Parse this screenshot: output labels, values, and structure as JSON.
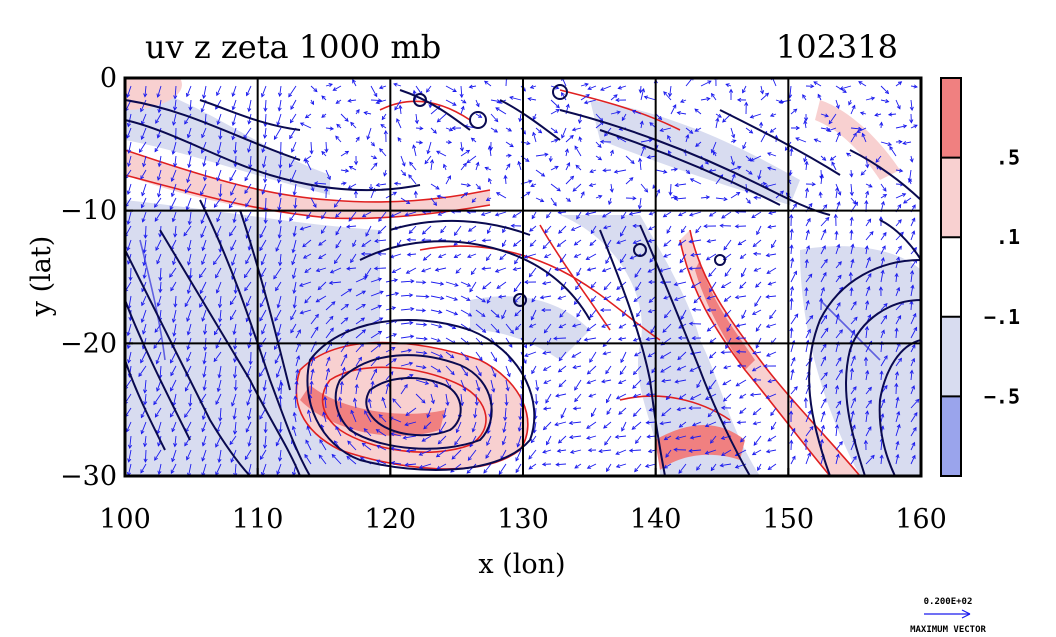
{
  "chart_data": {
    "type": "contour",
    "title": "uv z zeta 1000 mb",
    "subtitle": "102318",
    "xlabel": "x (lon)",
    "ylabel": "y (lat)",
    "xlim": [
      100,
      160
    ],
    "ylim": [
      -30,
      0
    ],
    "x_ticks": [
      100,
      110,
      120,
      130,
      140,
      150,
      160
    ],
    "x_tick_labels": [
      "100",
      "110",
      "120",
      "130",
      "140",
      "150",
      "160"
    ],
    "y_ticks": [
      0,
      -10,
      -20,
      -30
    ],
    "y_tick_labels": [
      "0",
      "−10",
      "−20",
      "−30"
    ],
    "grid": true,
    "fields": {
      "zeta": {
        "display": "filled contours",
        "positive_color": "#e06060",
        "negative_color": "#8080e0"
      },
      "z": {
        "display": "line contours",
        "color": "#0a0a50"
      },
      "uv": {
        "display": "wind vectors",
        "color": "#1a1aee"
      }
    },
    "colorbar": {
      "labels": [
        ".5",
        ".1",
        "−.1",
        "−.5"
      ],
      "label_values": [
        0.5,
        0.1,
        -0.1,
        -0.5
      ],
      "bands": [
        {
          "color": "#f08080"
        },
        {
          "color": "#f8d0d0"
        },
        {
          "color": "#ffffff"
        },
        {
          "color": "#d8dcf0"
        },
        {
          "color": "#9aa4ec"
        }
      ]
    },
    "max_vector": {
      "value_label": "0.200E+02",
      "caption": "MAXIMUM VECTOR"
    }
  }
}
